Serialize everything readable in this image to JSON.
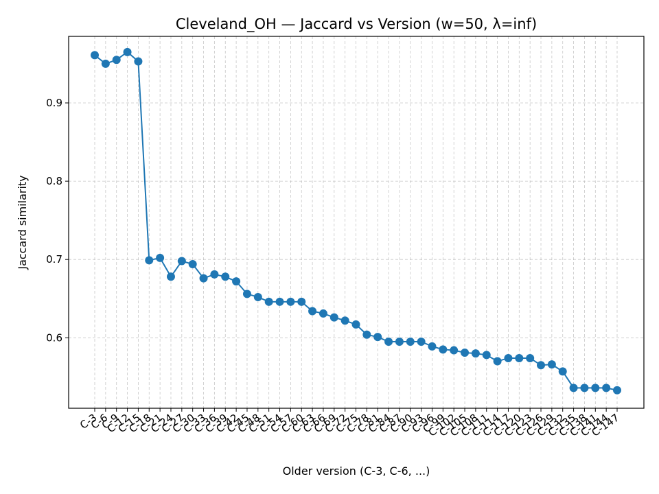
{
  "chart_data": {
    "type": "line",
    "title": "Cleveland_OH — Jaccard vs Version (w=50, λ=inf)",
    "xlabel": "Older version (C-3, C-6, ...)",
    "ylabel": "Jaccard similarity",
    "ylim": [
      0.51,
      0.985
    ],
    "yticks": [
      0.6,
      0.7,
      0.8,
      0.9
    ],
    "ytick_labels": [
      "0.6",
      "0.7",
      "0.8",
      "0.9"
    ],
    "grid": true,
    "categories": [
      "C-3",
      "C-6",
      "C-9",
      "C-12",
      "C-15",
      "C-18",
      "C-21",
      "C-24",
      "C-27",
      "C-30",
      "C-33",
      "C-36",
      "C-39",
      "C-42",
      "C-45",
      "C-48",
      "C-51",
      "C-54",
      "C-57",
      "C-60",
      "C-63",
      "C-66",
      "C-69",
      "C-72",
      "C-75",
      "C-78",
      "C-81",
      "C-84",
      "C-87",
      "C-90",
      "C-93",
      "C-96",
      "C-99",
      "C-102",
      "C-105",
      "C-108",
      "C-111",
      "C-114",
      "C-117",
      "C-120",
      "C-123",
      "C-126",
      "C-129",
      "C-132",
      "C-135",
      "C-138",
      "C-141",
      "C-144",
      "C-147"
    ],
    "series": [
      {
        "color": "#1f77b4",
        "values": [
          0.961,
          0.95,
          0.955,
          0.965,
          0.953,
          0.699,
          0.702,
          0.678,
          0.698,
          0.694,
          0.676,
          0.681,
          0.678,
          0.672,
          0.656,
          0.652,
          0.646,
          0.646,
          0.646,
          0.646,
          0.634,
          0.631,
          0.626,
          0.622,
          0.617,
          0.604,
          0.601,
          0.595,
          0.595,
          0.595,
          0.595,
          0.589,
          0.585,
          0.584,
          0.581,
          0.58,
          0.578,
          0.57,
          0.574,
          0.574,
          0.574,
          0.565,
          0.566,
          0.557,
          0.536,
          0.536,
          0.536,
          0.536,
          0.533
        ]
      }
    ]
  }
}
